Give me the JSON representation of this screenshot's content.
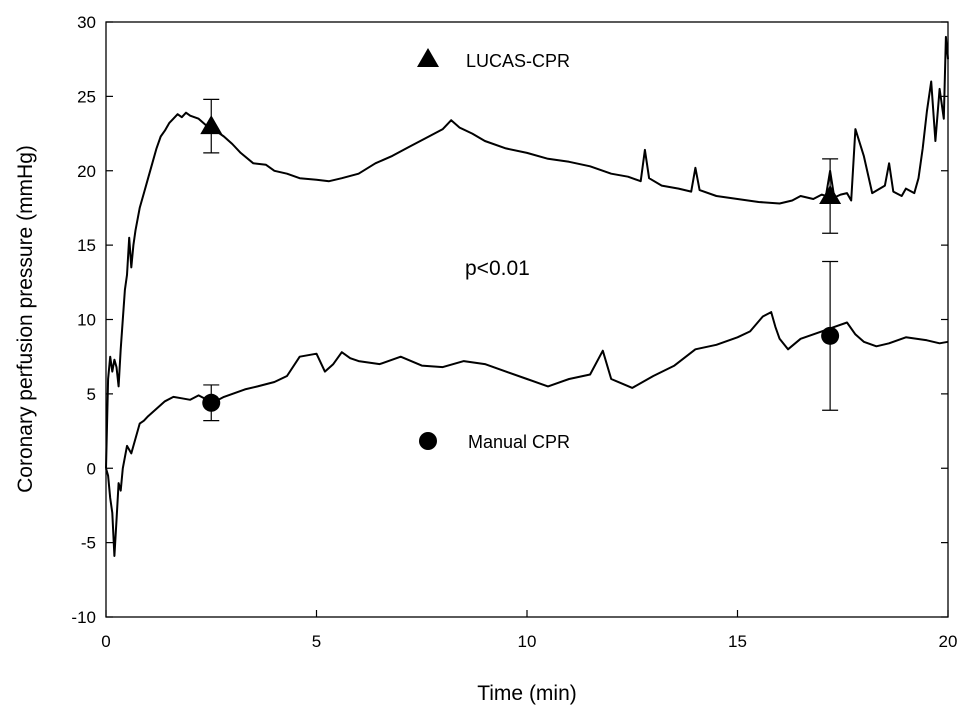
{
  "chart_data": {
    "type": "line",
    "xlabel": "Time (min)",
    "ylabel": "Coronary perfusion pressure (mmHg)",
    "xlim": [
      0,
      20
    ],
    "ylim": [
      -10,
      30
    ],
    "xticks": [
      0,
      5,
      10,
      15,
      20
    ],
    "yticks": [
      -10,
      -5,
      0,
      5,
      10,
      15,
      20,
      25,
      30
    ],
    "grid": false,
    "annotation": "p<0.01",
    "series": [
      {
        "name": "LUCAS-CPR",
        "marker": "triangle",
        "x": [
          0,
          0.05,
          0.1,
          0.15,
          0.2,
          0.25,
          0.3,
          0.35,
          0.4,
          0.45,
          0.5,
          0.55,
          0.6,
          0.65,
          0.7,
          0.8,
          0.9,
          1.0,
          1.1,
          1.2,
          1.3,
          1.4,
          1.5,
          1.6,
          1.7,
          1.8,
          1.9,
          2.0,
          2.2,
          2.4,
          2.6,
          2.8,
          3.0,
          3.2,
          3.5,
          3.8,
          4.0,
          4.3,
          4.6,
          5.0,
          5.3,
          5.6,
          6.0,
          6.4,
          6.8,
          7.2,
          7.6,
          8.0,
          8.2,
          8.4,
          8.7,
          9.0,
          9.5,
          10.0,
          10.5,
          11.0,
          11.5,
          12.0,
          12.4,
          12.7,
          12.8,
          12.9,
          13.2,
          13.6,
          13.9,
          14.0,
          14.1,
          14.5,
          15.0,
          15.5,
          16.0,
          16.3,
          16.5,
          16.8,
          17.0,
          17.1,
          17.2,
          17.3,
          17.45,
          17.6,
          17.7,
          17.8,
          18.0,
          18.2,
          18.5,
          18.6,
          18.7,
          18.9,
          19.0,
          19.2,
          19.3,
          19.4,
          19.5,
          19.6,
          19.7,
          19.8,
          19.9,
          19.95,
          20.0
        ],
        "values": [
          0,
          6,
          7.5,
          6.5,
          7.3,
          6.8,
          5.5,
          8,
          10,
          12,
          13,
          15.5,
          13.5,
          15,
          16,
          17.5,
          18.5,
          19.5,
          20.5,
          21.5,
          22.3,
          22.7,
          23.2,
          23.5,
          23.8,
          23.6,
          23.9,
          23.7,
          23.5,
          23.0,
          22.7,
          22.3,
          21.8,
          21.2,
          20.5,
          20.4,
          20.0,
          19.8,
          19.5,
          19.4,
          19.3,
          19.5,
          19.8,
          20.5,
          21.0,
          21.6,
          22.2,
          22.8,
          23.4,
          22.9,
          22.5,
          22.0,
          21.5,
          21.2,
          20.8,
          20.6,
          20.3,
          19.8,
          19.6,
          19.3,
          21.4,
          19.5,
          19.0,
          18.8,
          18.6,
          20.2,
          18.7,
          18.3,
          18.1,
          17.9,
          17.8,
          18.0,
          18.3,
          18.1,
          18.4,
          18.3,
          20.0,
          18.2,
          18.4,
          18.5,
          18.0,
          22.8,
          21.0,
          18.5,
          19.0,
          20.5,
          18.6,
          18.3,
          18.8,
          18.5,
          19.5,
          21.5,
          24.0,
          26.0,
          22.0,
          25.5,
          23.5,
          29.0,
          27.5
        ]
      },
      {
        "name": "Manual CPR",
        "marker": "circle",
        "x": [
          0,
          0.05,
          0.1,
          0.15,
          0.2,
          0.25,
          0.3,
          0.35,
          0.4,
          0.5,
          0.6,
          0.7,
          0.8,
          0.9,
          1.0,
          1.2,
          1.4,
          1.6,
          1.8,
          2.0,
          2.2,
          2.4,
          2.6,
          2.8,
          3.0,
          3.3,
          3.6,
          4.0,
          4.3,
          4.6,
          5.0,
          5.2,
          5.4,
          5.6,
          5.8,
          6.0,
          6.5,
          7.0,
          7.5,
          8.0,
          8.5,
          9.0,
          9.5,
          10.0,
          10.5,
          11.0,
          11.5,
          11.8,
          12.0,
          12.5,
          13.0,
          13.5,
          14.0,
          14.5,
          15.0,
          15.3,
          15.6,
          15.8,
          15.9,
          16.0,
          16.2,
          16.5,
          17.0,
          17.3,
          17.6,
          17.8,
          18.0,
          18.3,
          18.6,
          19.0,
          19.5,
          19.8,
          20.0
        ],
        "values": [
          0,
          -0.5,
          -2,
          -3,
          -5.9,
          -3.5,
          -1,
          -1.5,
          0,
          1.5,
          1.0,
          2.0,
          3.0,
          3.2,
          3.5,
          4.0,
          4.5,
          4.8,
          4.7,
          4.6,
          4.9,
          4.6,
          4.5,
          4.8,
          5.0,
          5.3,
          5.5,
          5.8,
          6.2,
          7.5,
          7.7,
          6.5,
          7.0,
          7.8,
          7.4,
          7.2,
          7.0,
          7.5,
          6.9,
          6.8,
          7.2,
          7.0,
          6.5,
          6.0,
          5.5,
          6.0,
          6.3,
          7.9,
          6.0,
          5.4,
          6.2,
          6.9,
          8.0,
          8.3,
          8.8,
          9.2,
          10.2,
          10.5,
          9.5,
          8.7,
          8.0,
          8.7,
          9.2,
          9.5,
          9.8,
          9.0,
          8.5,
          8.2,
          8.4,
          8.8,
          8.6,
          8.4,
          8.5
        ]
      }
    ],
    "markers": [
      {
        "series": "LUCAS-CPR",
        "shape": "triangle",
        "x": 2.5,
        "y": 23.0,
        "err": 1.8
      },
      {
        "series": "LUCAS-CPR",
        "shape": "triangle",
        "x": 17.2,
        "y": 18.3,
        "err": 2.5
      },
      {
        "series": "Manual CPR",
        "shape": "circle",
        "x": 2.5,
        "y": 4.4,
        "err": 1.2
      },
      {
        "series": "Manual CPR",
        "shape": "circle",
        "x": 17.2,
        "y": 8.9,
        "err": 5.0
      }
    ]
  }
}
